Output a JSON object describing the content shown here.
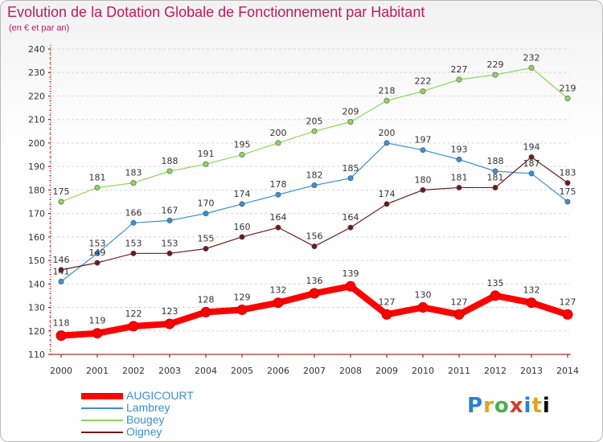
{
  "title": "Evolution de la Dotation Globale de Fonctionnement par Habitant",
  "subtitle": "(en € et par an)",
  "logo_text": "Proxiti",
  "chart_data": {
    "type": "line",
    "x": [
      2000,
      2001,
      2002,
      2003,
      2004,
      2005,
      2006,
      2007,
      2008,
      2009,
      2010,
      2011,
      2012,
      2013,
      2014
    ],
    "ylim": [
      110,
      240
    ],
    "yticks": [
      110,
      120,
      130,
      140,
      150,
      160,
      170,
      180,
      190,
      200,
      210,
      220,
      230,
      240
    ],
    "grid": "horizontal dashed",
    "legend_position": "bottom-left",
    "series": [
      {
        "name": "AUGICOURT",
        "color": "#ff0000",
        "values": [
          118,
          119,
          122,
          123,
          128,
          129,
          132,
          136,
          139,
          127,
          130,
          127,
          135,
          132,
          127
        ]
      },
      {
        "name": "Lambrey",
        "color": "#3a8fd4",
        "values": [
          141,
          153,
          166,
          167,
          170,
          174,
          178,
          182,
          185,
          200,
          197,
          193,
          188,
          187,
          175
        ]
      },
      {
        "name": "Bougey",
        "color": "#8ed65a",
        "values": [
          175,
          181,
          183,
          188,
          191,
          195,
          200,
          205,
          209,
          218,
          222,
          227,
          229,
          232,
          219
        ]
      },
      {
        "name": "Oigney",
        "color": "#6b1a1a",
        "values": [
          146,
          149,
          153,
          153,
          155,
          160,
          164,
          156,
          164,
          174,
          180,
          181,
          181,
          194,
          183
        ]
      }
    ]
  }
}
